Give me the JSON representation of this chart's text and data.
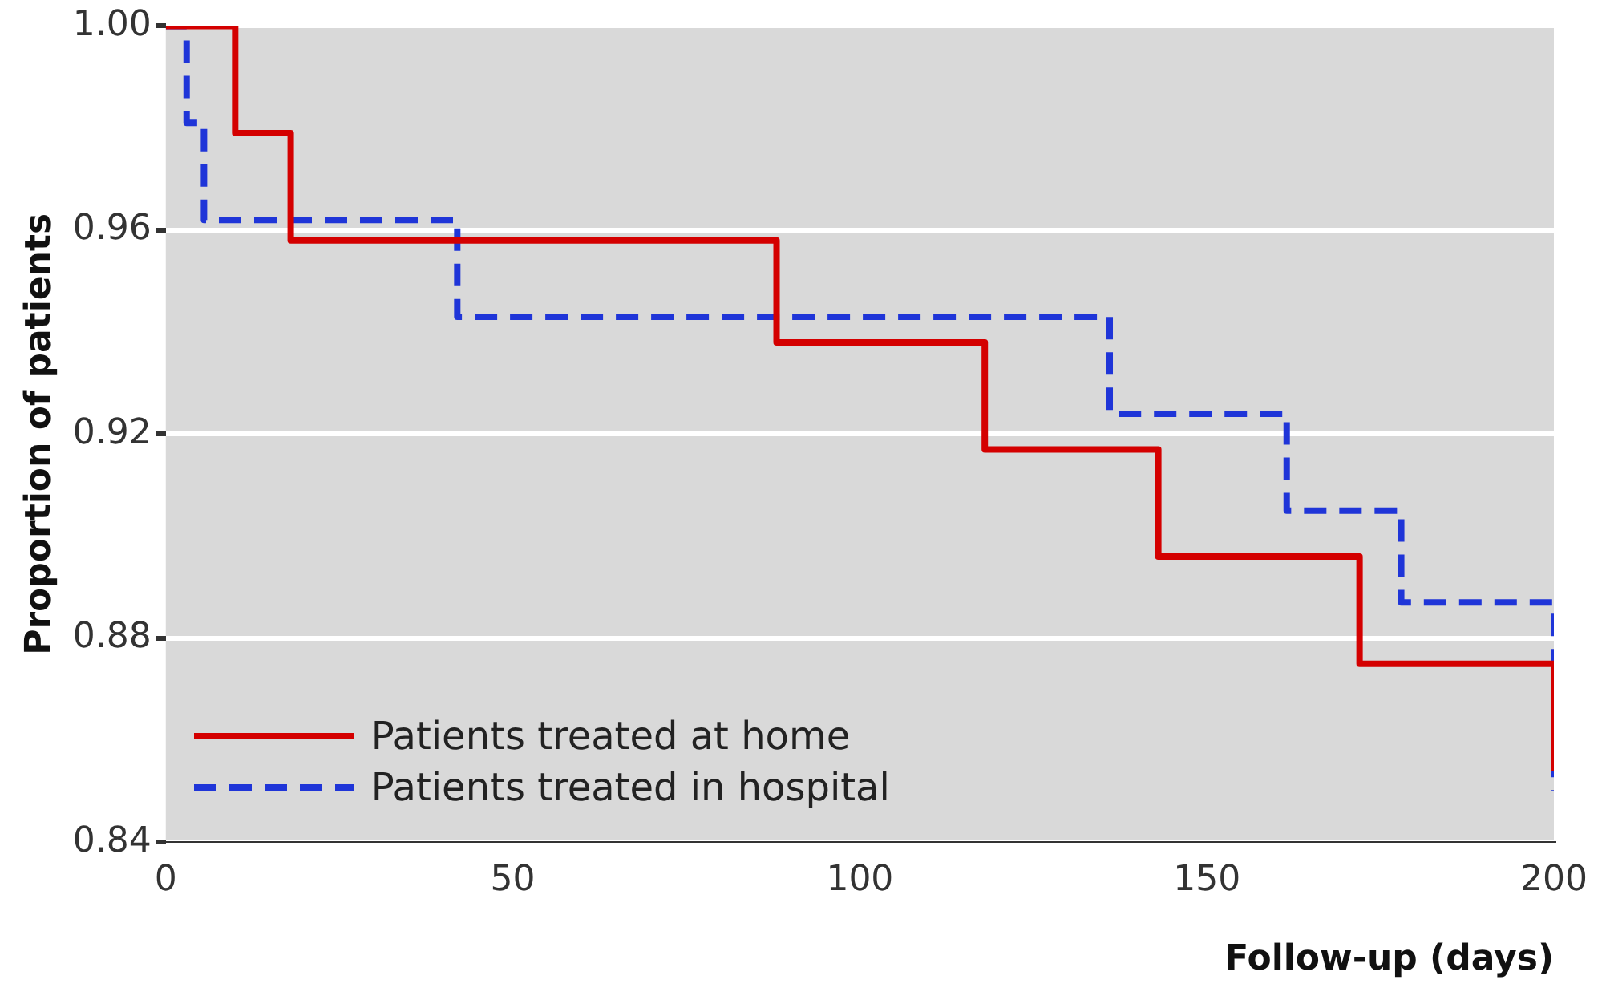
{
  "chart_data": {
    "type": "step",
    "xlabel": "Follow-up (days)",
    "ylabel": "Proportion of patients",
    "xlim": [
      0,
      200
    ],
    "xticks": [
      0,
      50,
      100,
      150,
      200
    ],
    "ylim": [
      0.84,
      1.0
    ],
    "yticks": [
      {
        "value": 0.84,
        "label": "0.84"
      },
      {
        "value": 0.88,
        "label": "0.88"
      },
      {
        "value": 0.92,
        "label": "0.92"
      },
      {
        "value": 0.96,
        "label": "0.96"
      },
      {
        "value": 1.0,
        "label": "1.00"
      }
    ],
    "grid": "y",
    "legend": "bottom left",
    "marker": "none",
    "series": [
      {
        "name": "Patients treated at home",
        "color": "#d40000",
        "line_style": "solid",
        "x": [
          0,
          10,
          18,
          88,
          118,
          143,
          172,
          200
        ],
        "values": [
          1.0,
          0.979,
          0.958,
          0.938,
          0.917,
          0.896,
          0.875,
          0.854
        ]
      },
      {
        "name": "Patients treated in hospital",
        "color": "#1f35d8",
        "line_style": "dashed",
        "x": [
          0,
          3,
          5.5,
          42,
          136,
          161.5,
          178,
          200
        ],
        "values": [
          1.0,
          0.981,
          0.962,
          0.943,
          0.924,
          0.905,
          0.887,
          0.85
        ]
      }
    ]
  }
}
